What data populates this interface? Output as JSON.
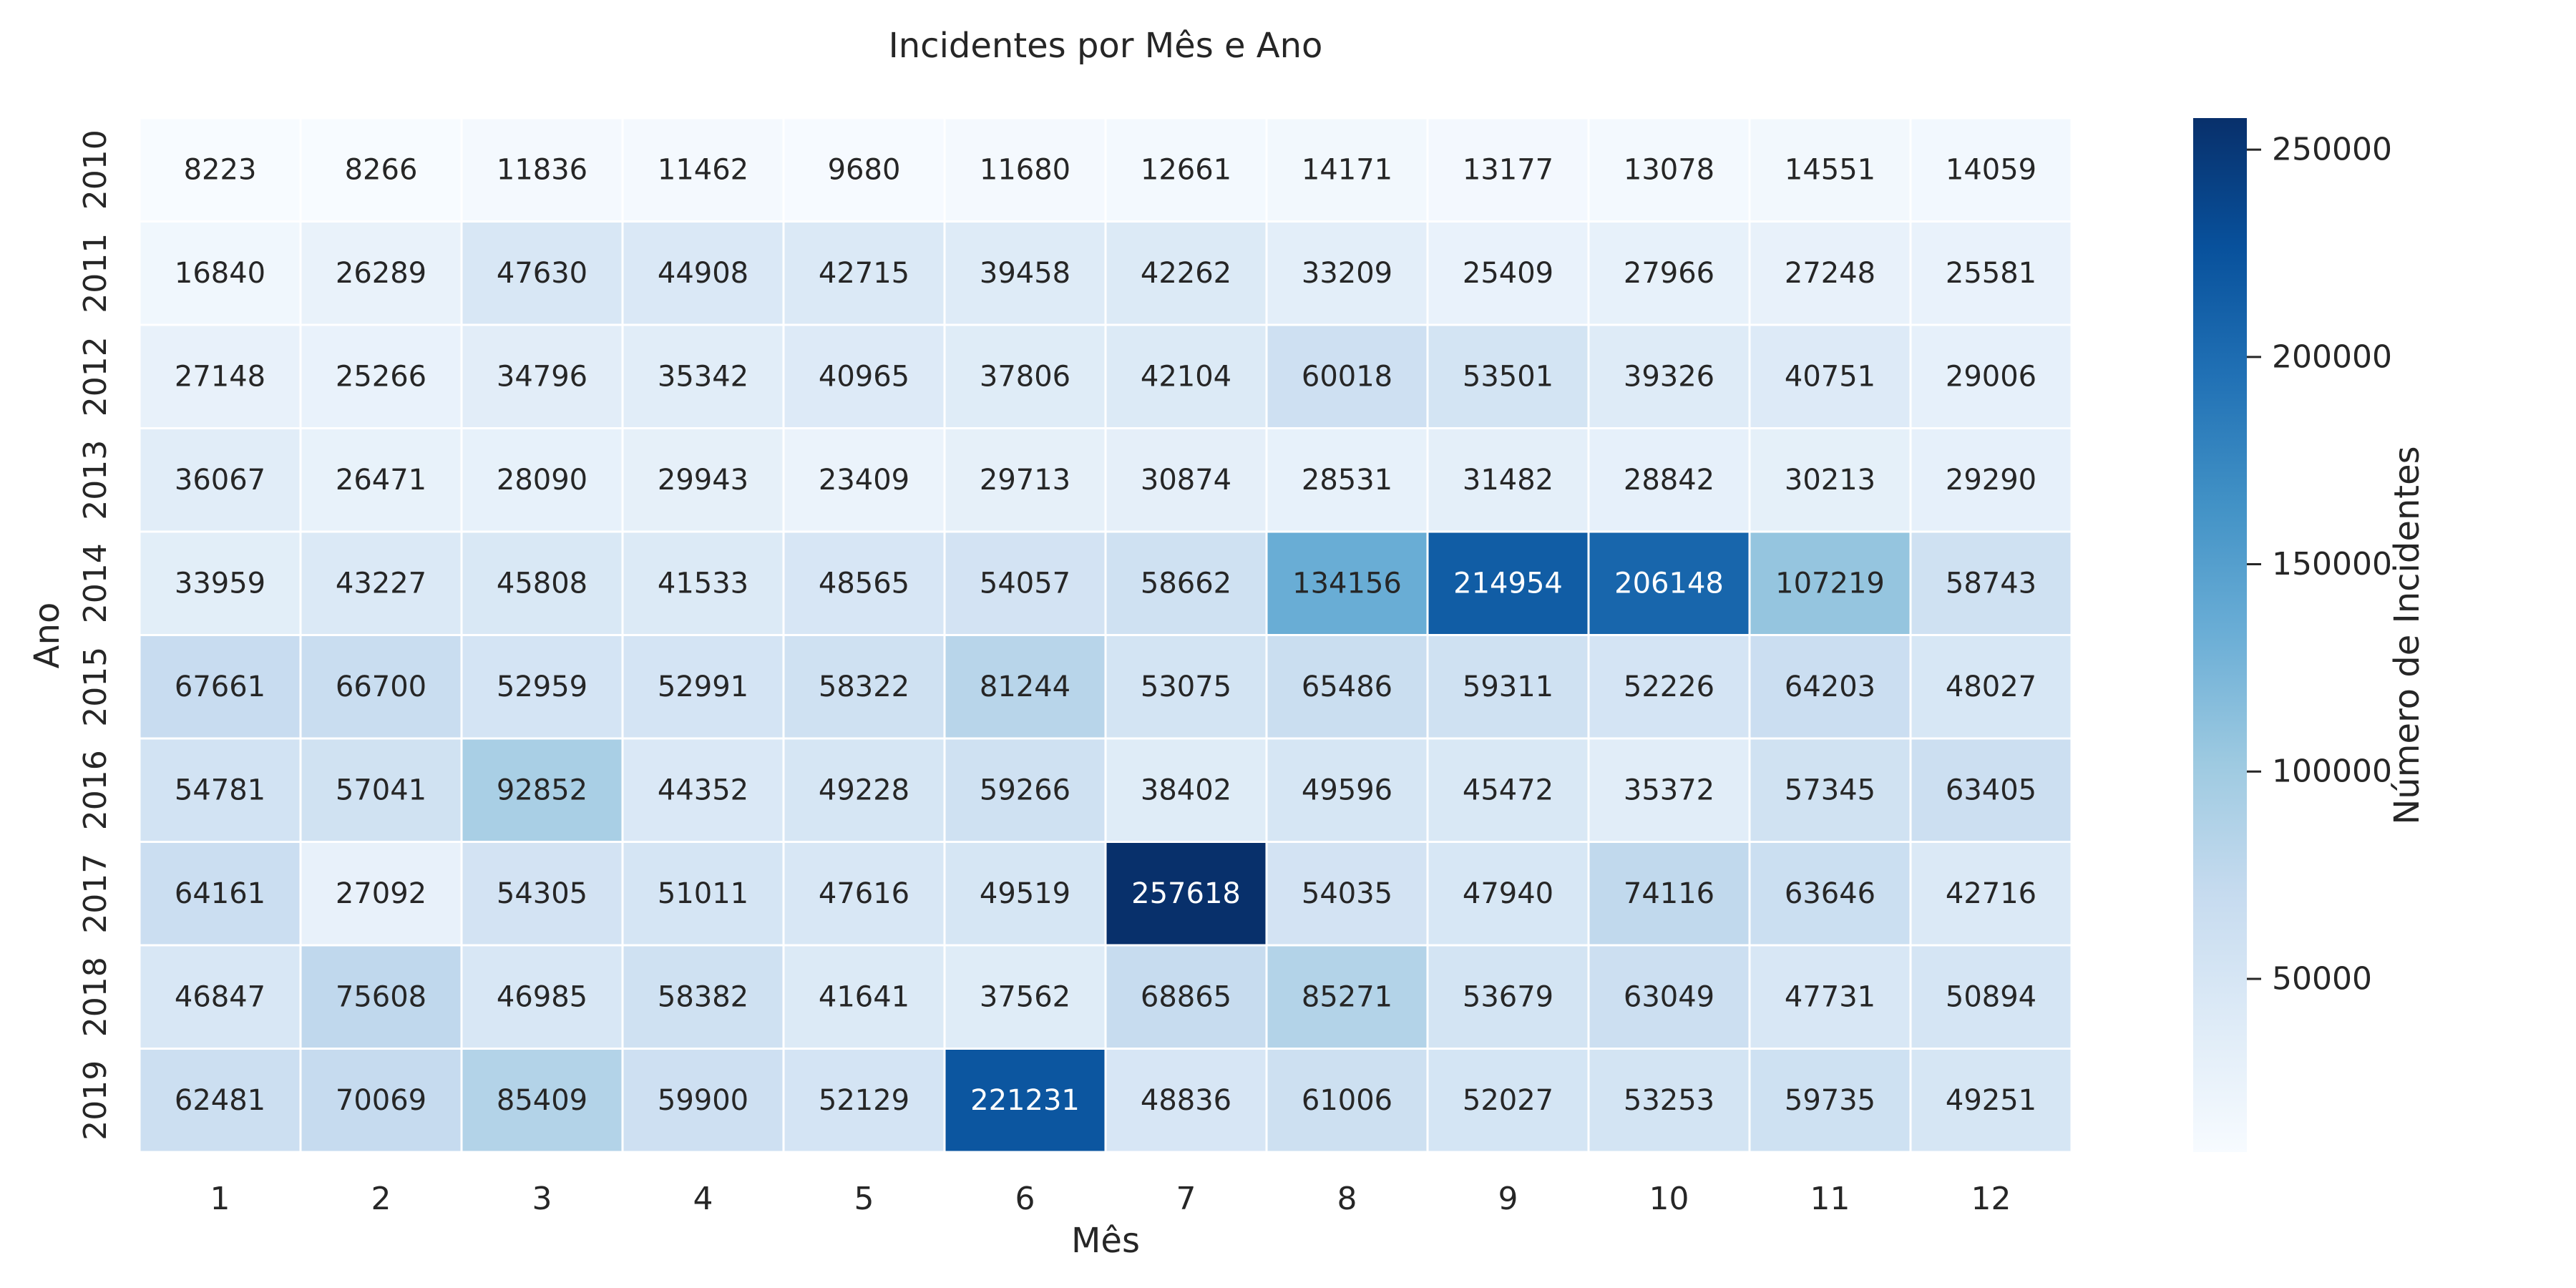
{
  "chart_data": {
    "type": "heatmap",
    "title": "Incidentes por Mês e Ano",
    "xlabel": "Mês",
    "ylabel": "Ano",
    "x_categories": [
      "1",
      "2",
      "3",
      "4",
      "5",
      "6",
      "7",
      "8",
      "9",
      "10",
      "11",
      "12"
    ],
    "y_categories": [
      "2010",
      "2011",
      "2012",
      "2013",
      "2014",
      "2015",
      "2016",
      "2017",
      "2018",
      "2019"
    ],
    "values": [
      [
        8223,
        8266,
        11836,
        11462,
        9680,
        11680,
        12661,
        14171,
        13177,
        13078,
        14551,
        14059
      ],
      [
        16840,
        26289,
        47630,
        44908,
        42715,
        39458,
        42262,
        33209,
        25409,
        27966,
        27248,
        25581
      ],
      [
        27148,
        25266,
        34796,
        35342,
        40965,
        37806,
        42104,
        60018,
        53501,
        39326,
        40751,
        29006
      ],
      [
        36067,
        26471,
        28090,
        29943,
        23409,
        29713,
        30874,
        28531,
        31482,
        28842,
        30213,
        29290
      ],
      [
        33959,
        43227,
        45808,
        41533,
        48565,
        54057,
        58662,
        134156,
        214954,
        206148,
        107219,
        58743
      ],
      [
        67661,
        66700,
        52959,
        52991,
        58322,
        81244,
        53075,
        65486,
        59311,
        52226,
        64203,
        48027
      ],
      [
        54781,
        57041,
        92852,
        44352,
        49228,
        59266,
        38402,
        49596,
        45472,
        35372,
        57345,
        63405
      ],
      [
        64161,
        27092,
        54305,
        51011,
        47616,
        49519,
        257618,
        54035,
        47940,
        74116,
        63646,
        42716
      ],
      [
        46847,
        75608,
        46985,
        58382,
        41641,
        37562,
        68865,
        85271,
        53679,
        63049,
        47731,
        50894
      ],
      [
        62481,
        70069,
        85409,
        59900,
        52129,
        221231,
        48836,
        61006,
        52027,
        53253,
        59735,
        49251
      ]
    ],
    "colorbar": {
      "label": "Número de Incidentes",
      "ticks": [
        50000,
        100000,
        150000,
        200000,
        250000
      ],
      "range": [
        8223,
        257618
      ],
      "colormap": "Blues"
    },
    "grid": false
  }
}
